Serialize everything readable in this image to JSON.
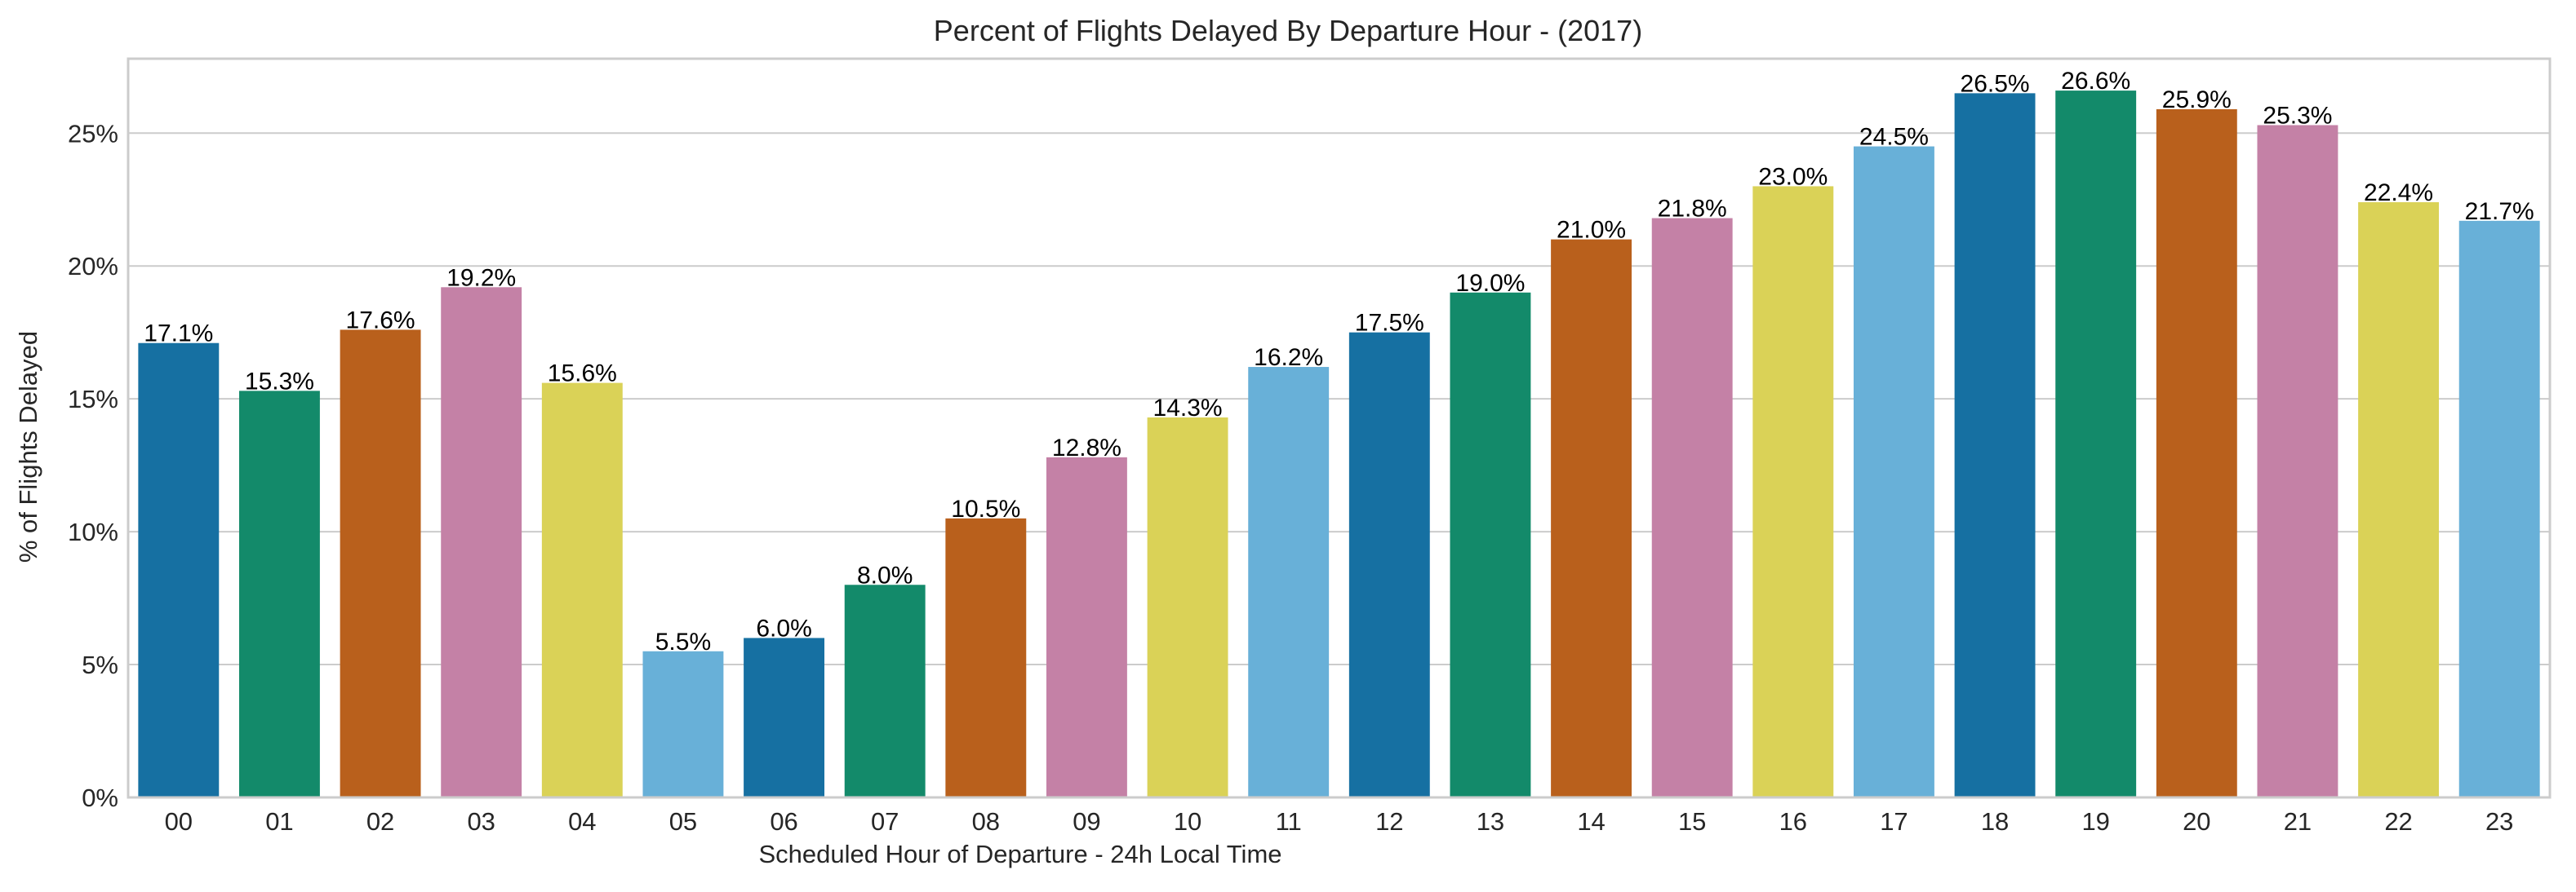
{
  "chart_data": {
    "type": "bar",
    "title": "Percent of Flights Delayed By Departure Hour - (2017)",
    "xlabel": "Scheduled Hour of Departure - 24h Local Time",
    "ylabel": "% of Flights Delayed",
    "ylim": [
      0,
      27.8
    ],
    "yticks": [
      0,
      5,
      10,
      15,
      20,
      25
    ],
    "ytick_labels": [
      "0%",
      "5%",
      "10%",
      "15%",
      "20%",
      "25%"
    ],
    "grid": "horizontal",
    "categories": [
      "00",
      "01",
      "02",
      "03",
      "04",
      "05",
      "06",
      "07",
      "08",
      "09",
      "10",
      "11",
      "12",
      "13",
      "14",
      "15",
      "16",
      "17",
      "18",
      "19",
      "20",
      "21",
      "22",
      "23"
    ],
    "values": [
      17.1,
      15.3,
      17.6,
      19.2,
      15.6,
      5.5,
      6.0,
      8.0,
      10.5,
      12.8,
      14.3,
      16.2,
      17.5,
      19.0,
      21.0,
      21.8,
      23.0,
      24.5,
      26.5,
      26.6,
      25.9,
      25.3,
      22.4,
      21.7
    ],
    "data_labels": [
      "17.1%",
      "15.3%",
      "17.6%",
      "19.2%",
      "15.6%",
      "5.5%",
      "6.0%",
      "8.0%",
      "10.5%",
      "12.8%",
      "14.3%",
      "16.2%",
      "17.5%",
      "19.0%",
      "21.0%",
      "21.8%",
      "23.0%",
      "24.5%",
      "26.5%",
      "26.6%",
      "25.9%",
      "25.3%",
      "22.4%",
      "21.7%"
    ],
    "palette": [
      "#1670a2",
      "#138a6a",
      "#b9601c",
      "#c481a6",
      "#dad257",
      "#68b0d8"
    ]
  }
}
